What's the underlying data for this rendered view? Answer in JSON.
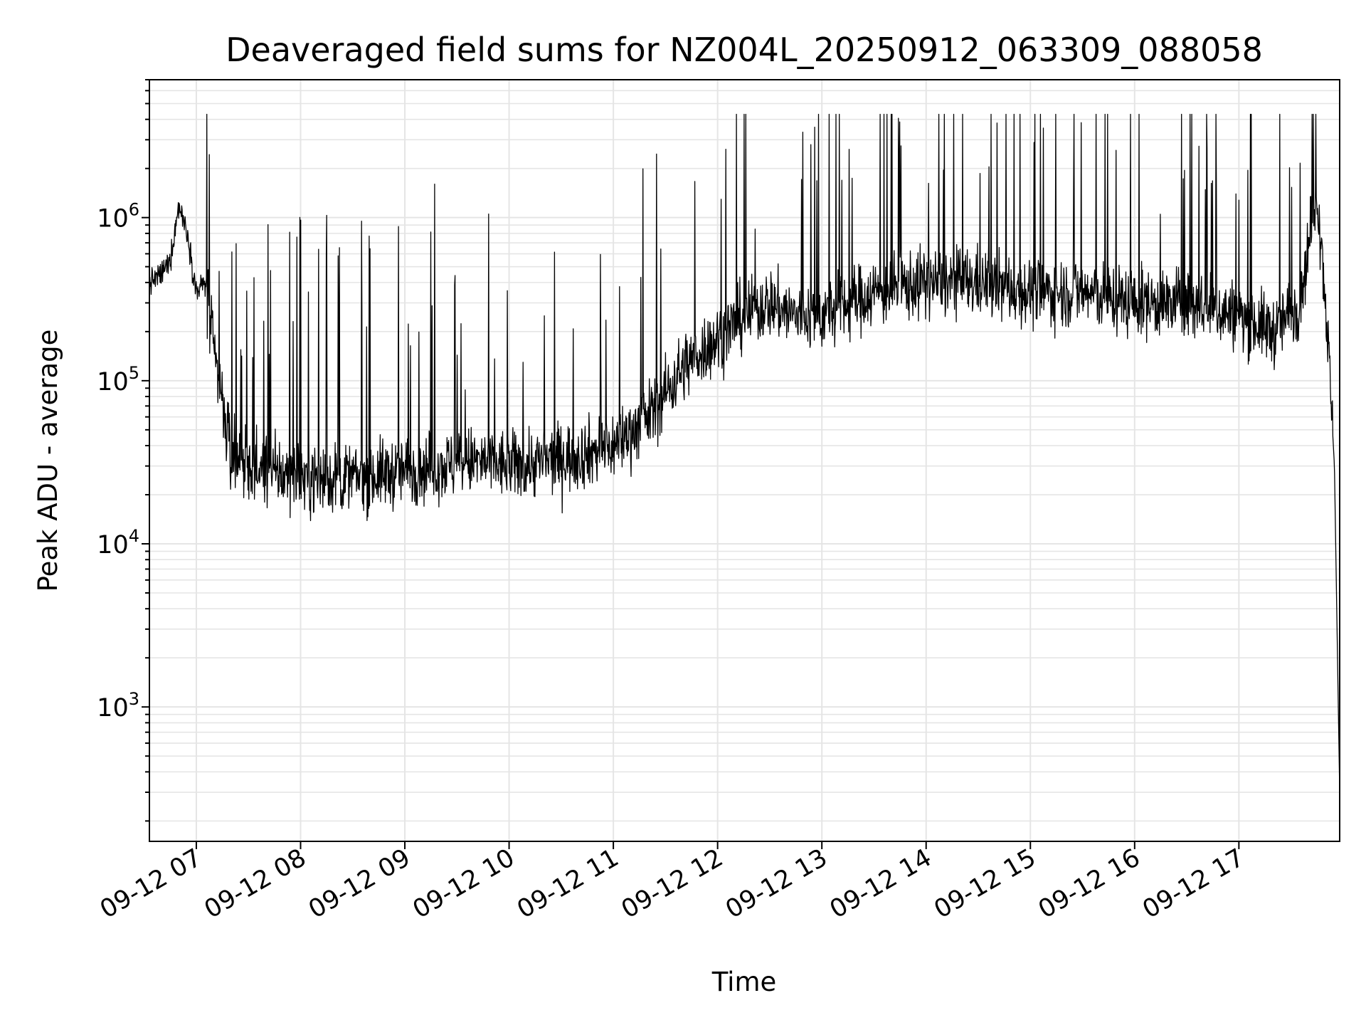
{
  "chart_data": {
    "type": "line",
    "title": "Deaveraged field sums for NZ004L_20250912_063309_088058",
    "xlabel": "Time",
    "ylabel": "Peak ADU - average",
    "yscale": "log",
    "ylim": [
      150,
      7000000
    ],
    "xlim": [
      "09-12 06:33",
      "09-12 17:58"
    ],
    "x_tick_labels": [
      "09-12 07",
      "09-12 08",
      "09-12 09",
      "09-12 10",
      "09-12 11",
      "09-12 12",
      "09-12 13",
      "09-12 14",
      "09-12 15",
      "09-12 16",
      "09-12 17"
    ],
    "y_tick_labels": [
      {
        "base": "10",
        "exp": "3",
        "value": 1000
      },
      {
        "base": "10",
        "exp": "4",
        "value": 10000
      },
      {
        "base": "10",
        "exp": "5",
        "value": 100000
      },
      {
        "base": "10",
        "exp": "6",
        "value": 1000000
      }
    ],
    "grid": true,
    "line_color": "#000000",
    "grid_color": "#e5e5e5",
    "series": [
      {
        "x": [
          "09-12 06:33",
          "09-12 06:40",
          "09-12 06:45",
          "09-12 06:50",
          "09-12 06:55",
          "09-12 07:00",
          "09-12 07:05",
          "09-12 07:10",
          "09-12 07:15",
          "09-12 07:20",
          "09-12 07:30",
          "09-12 07:45",
          "09-12 08:00",
          "09-12 08:20",
          "09-12 08:40",
          "09-12 09:00",
          "09-12 09:20",
          "09-12 09:40",
          "09-12 10:00",
          "09-12 10:20",
          "09-12 10:40",
          "09-12 11:00",
          "09-12 11:20",
          "09-12 11:40",
          "09-12 11:50",
          "09-12 12:00",
          "09-12 12:15",
          "09-12 12:30",
          "09-12 12:45",
          "09-12 13:00",
          "09-12 13:30",
          "09-12 14:00",
          "09-12 14:30",
          "09-12 15:00",
          "09-12 15:30",
          "09-12 16:00",
          "09-12 16:30",
          "09-12 17:00",
          "09-12 17:20",
          "09-12 17:35",
          "09-12 17:45",
          "09-12 17:50",
          "09-12 17:55",
          "09-12 17:58"
        ],
        "y": [
          400000,
          450000,
          550000,
          1200000,
          800000,
          350000,
          400000,
          150000,
          70000,
          35000,
          28000,
          27000,
          26000,
          25000,
          26000,
          28000,
          30000,
          32000,
          30000,
          32000,
          35000,
          40000,
          60000,
          120000,
          150000,
          180000,
          250000,
          300000,
          250000,
          250000,
          350000,
          400000,
          400000,
          350000,
          350000,
          300000,
          300000,
          250000,
          200000,
          300000,
          1500000,
          300000,
          30000,
          300
        ]
      }
    ]
  }
}
